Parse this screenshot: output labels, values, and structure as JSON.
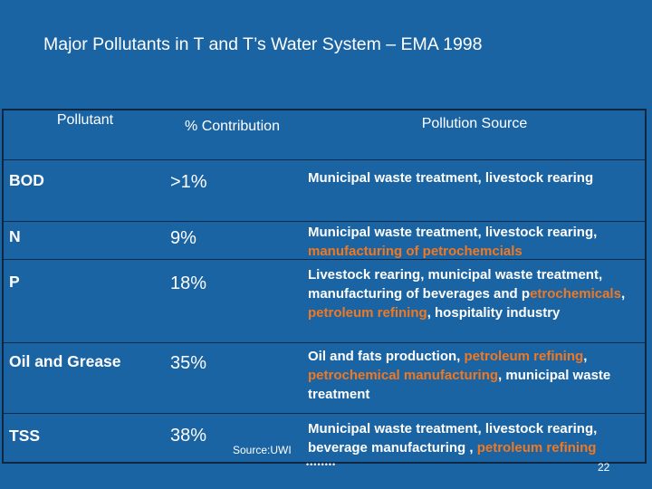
{
  "title": "Major Pollutants in T and T’s Water System – EMA 1998",
  "colors": {
    "background": "#1b64a4",
    "highlight": "#f07820",
    "text": "#ffffff"
  },
  "table": {
    "headers": {
      "pollutant": "Pollutant",
      "contribution": "% Contribution",
      "source": "Pollution Source"
    },
    "rows": [
      {
        "pollutant": "BOD",
        "contribution": ">1%",
        "source": [
          {
            "text": "Municipal waste treatment, livestock rearing",
            "highlight": false
          }
        ]
      },
      {
        "pollutant": "N",
        "contribution": "9%",
        "source": [
          {
            "text": "Municipal waste treatment, livestock rearing, ",
            "highlight": false
          },
          {
            "text": "manufacturing of petrochemcials",
            "highlight": true
          }
        ]
      },
      {
        "pollutant": "P",
        "contribution": "18%",
        "source": [
          {
            "text": "Livestock rearing, municipal waste treatment, manufacturing of beverages and ",
            "highlight": false
          },
          {
            "text": "p",
            "highlight": false
          },
          {
            "text": "etrochemicals",
            "highlight": true
          },
          {
            "text": ", ",
            "highlight": false
          },
          {
            "text": "petroleum refining",
            "highlight": true
          },
          {
            "text": ", hospitality industry",
            "highlight": false
          }
        ]
      },
      {
        "pollutant": "Oil and Grease",
        "contribution": "35%",
        "source": [
          {
            "text": "Oil and fats production, ",
            "highlight": false
          },
          {
            "text": "petroleum refining",
            "highlight": true
          },
          {
            "text": ", ",
            "highlight": false
          },
          {
            "text": "petrochemical manufacturing",
            "highlight": true
          },
          {
            "text": ", municipal waste treatment",
            "highlight": false
          }
        ]
      },
      {
        "pollutant": "TSS",
        "contribution": "38%",
        "source": [
          {
            "text": "Municipal waste treatment, livestock rearing, beverage manufacturing , ",
            "highlight": false
          },
          {
            "text": "petroleum refining",
            "highlight": true
          }
        ]
      }
    ]
  },
  "source_note": "Source:UWI",
  "page_number": "22"
}
